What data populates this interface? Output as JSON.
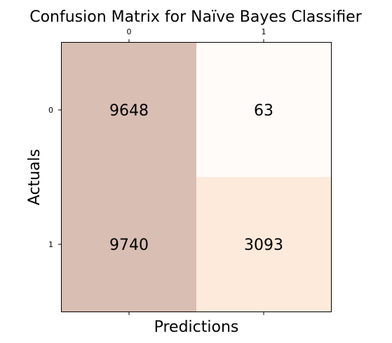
{
  "chart_data": {
    "type": "heatmap",
    "title": "Confusion Matrix for Naïve Bayes Classifier",
    "xlabel": "Predictions",
    "ylabel": "Actuals",
    "x_tick_labels": [
      "0",
      "1"
    ],
    "y_tick_labels": [
      "0",
      "1"
    ],
    "x_tick_position": "top",
    "matrix": [
      [
        9648,
        63
      ],
      [
        9740,
        3093
      ]
    ],
    "cell_labels": [
      [
        "9648",
        "63"
      ],
      [
        "9740",
        "3093"
      ]
    ],
    "colors": [
      [
        "#d9beb3",
        "#fffbf8"
      ],
      [
        "#d9beb3",
        "#fdeadb"
      ]
    ],
    "grid": false
  }
}
